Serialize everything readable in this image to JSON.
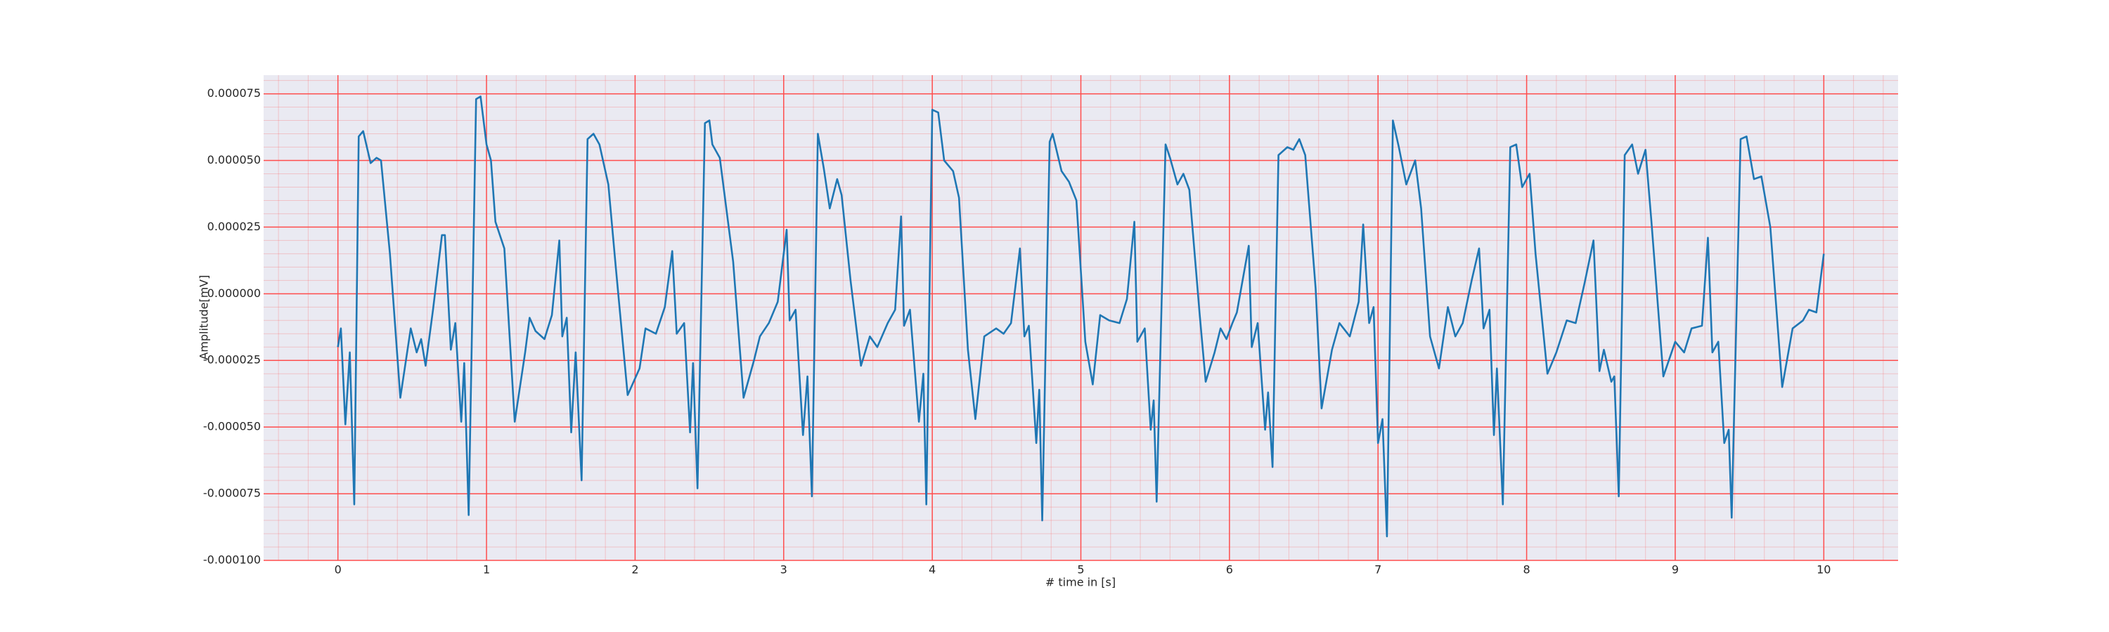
{
  "chart_data": {
    "type": "line",
    "xlabel": "# time in [s]",
    "ylabel": "Amplitude[mV]",
    "x": [
      0,
      0.02,
      0.05,
      0.08,
      0.11,
      0.14,
      0.17,
      0.22,
      0.26,
      0.29,
      0.35,
      0.42,
      0.49,
      0.53,
      0.56,
      0.59,
      0.64,
      0.7,
      0.72,
      0.76,
      0.79,
      0.83,
      0.85,
      0.88,
      0.93,
      0.96,
      1.0,
      1.03,
      1.06,
      1.12,
      1.19,
      1.26,
      1.29,
      1.33,
      1.39,
      1.44,
      1.49,
      1.51,
      1.54,
      1.57,
      1.6,
      1.64,
      1.68,
      1.72,
      1.76,
      1.82,
      1.87,
      1.95,
      2.03,
      2.07,
      2.14,
      2.2,
      2.25,
      2.28,
      2.33,
      2.37,
      2.39,
      2.42,
      2.47,
      2.5,
      2.52,
      2.57,
      2.66,
      2.73,
      2.8,
      2.84,
      2.9,
      2.96,
      3.02,
      3.04,
      3.08,
      3.13,
      3.16,
      3.19,
      3.23,
      3.27,
      3.31,
      3.36,
      3.39,
      3.45,
      3.52,
      3.58,
      3.63,
      3.7,
      3.75,
      3.79,
      3.81,
      3.85,
      3.91,
      3.94,
      3.96,
      4.0,
      4.04,
      4.08,
      4.14,
      4.18,
      4.24,
      4.29,
      4.35,
      4.43,
      4.48,
      4.53,
      4.59,
      4.62,
      4.65,
      4.7,
      4.72,
      4.74,
      4.79,
      4.81,
      4.87,
      4.92,
      4.97,
      5.03,
      5.08,
      5.13,
      5.19,
      5.26,
      5.31,
      5.36,
      5.38,
      5.43,
      5.47,
      5.49,
      5.51,
      5.57,
      5.6,
      5.65,
      5.69,
      5.73,
      5.8,
      5.84,
      5.9,
      5.94,
      5.98,
      6.02,
      6.05,
      6.13,
      6.15,
      6.19,
      6.24,
      6.26,
      6.29,
      6.33,
      6.39,
      6.43,
      6.47,
      6.51,
      6.58,
      6.62,
      6.69,
      6.74,
      6.81,
      6.87,
      6.9,
      6.94,
      6.97,
      7.0,
      7.03,
      7.06,
      7.1,
      7.14,
      7.19,
      7.25,
      7.29,
      7.35,
      7.41,
      7.47,
      7.52,
      7.57,
      7.63,
      7.68,
      7.71,
      7.75,
      7.78,
      7.8,
      7.84,
      7.89,
      7.93,
      7.97,
      8.02,
      8.06,
      8.14,
      8.2,
      8.27,
      8.33,
      8.39,
      8.45,
      8.49,
      8.52,
      8.57,
      8.59,
      8.62,
      8.66,
      8.71,
      8.75,
      8.8,
      8.84,
      8.92,
      9.0,
      9.06,
      9.11,
      9.18,
      9.22,
      9.25,
      9.29,
      9.33,
      9.36,
      9.38,
      9.44,
      9.48,
      9.53,
      9.58,
      9.64,
      9.72,
      9.79,
      9.86,
      9.9,
      9.95,
      10.0
    ],
    "series": [
      {
        "color": "#1f77b4",
        "values": [
          -2e-05,
          -1.3e-05,
          -4.9e-05,
          -2.2e-05,
          -7.9e-05,
          5.9e-05,
          6.1e-05,
          4.9e-05,
          5.1e-05,
          5e-05,
          1.5e-05,
          -3.9e-05,
          -1.3e-05,
          -2.2e-05,
          -1.7e-05,
          -2.7e-05,
          -6e-06,
          2.2e-05,
          2.2e-05,
          -2.1e-05,
          -1.1e-05,
          -4.8e-05,
          -2.6e-05,
          -8.3e-05,
          7.3e-05,
          7.4e-05,
          5.6e-05,
          5e-05,
          2.7e-05,
          1.7e-05,
          -4.8e-05,
          -2.2e-05,
          -9e-06,
          -1.4e-05,
          -1.7e-05,
          -8e-06,
          2e-05,
          -1.6e-05,
          -9e-06,
          -5.2e-05,
          -2.2e-05,
          -7e-05,
          5.8e-05,
          6e-05,
          5.6e-05,
          4.1e-05,
          1e-05,
          -3.8e-05,
          -2.8e-05,
          -1.3e-05,
          -1.5e-05,
          -5e-06,
          1.6e-05,
          -1.5e-05,
          -1.1e-05,
          -5.2e-05,
          -2.6e-05,
          -7.3e-05,
          6.4e-05,
          6.5e-05,
          5.6e-05,
          5.1e-05,
          1.2e-05,
          -3.9e-05,
          -2.5e-05,
          -1.6e-05,
          -1.1e-05,
          -3e-06,
          2.4e-05,
          -1e-05,
          -6e-06,
          -5.3e-05,
          -3.1e-05,
          -7.6e-05,
          6e-05,
          4.7e-05,
          3.2e-05,
          4.3e-05,
          3.7e-05,
          5e-06,
          -2.7e-05,
          -1.6e-05,
          -2e-05,
          -1.1e-05,
          -6e-06,
          2.9e-05,
          -1.2e-05,
          -6e-06,
          -4.8e-05,
          -3e-05,
          -7.9e-05,
          6.9e-05,
          6.8e-05,
          5e-05,
          4.6e-05,
          3.6e-05,
          -2.1e-05,
          -4.7e-05,
          -1.6e-05,
          -1.3e-05,
          -1.5e-05,
          -1.1e-05,
          1.7e-05,
          -1.6e-05,
          -1.2e-05,
          -5.6e-05,
          -3.6e-05,
          -8.5e-05,
          5.7e-05,
          6e-05,
          4.6e-05,
          4.2e-05,
          3.5e-05,
          -1.8e-05,
          -3.4e-05,
          -8e-06,
          -1e-05,
          -1.1e-05,
          -2e-06,
          2.7e-05,
          -1.8e-05,
          -1.3e-05,
          -5.1e-05,
          -4e-05,
          -7.8e-05,
          5.6e-05,
          5.1e-05,
          4.1e-05,
          4.5e-05,
          3.9e-05,
          -8e-06,
          -3.3e-05,
          -2.2e-05,
          -1.3e-05,
          -1.7e-05,
          -1.1e-05,
          -7e-06,
          1.8e-05,
          -2e-05,
          -1.1e-05,
          -5.1e-05,
          -3.7e-05,
          -6.5e-05,
          5.2e-05,
          5.5e-05,
          5.4e-05,
          5.8e-05,
          5.2e-05,
          2e-06,
          -4.3e-05,
          -2.1e-05,
          -1.1e-05,
          -1.6e-05,
          -3e-06,
          2.6e-05,
          -1.1e-05,
          -5e-06,
          -5.6e-05,
          -4.7e-05,
          -9.1e-05,
          6.5e-05,
          5.5e-05,
          4.1e-05,
          5e-05,
          3.2e-05,
          -1.6e-05,
          -2.8e-05,
          -5e-06,
          -1.6e-05,
          -1.1e-05,
          5e-06,
          1.7e-05,
          -1.3e-05,
          -6e-06,
          -5.3e-05,
          -2.8e-05,
          -7.9e-05,
          5.5e-05,
          5.6e-05,
          4e-05,
          4.5e-05,
          1.5e-05,
          -3e-05,
          -2.2e-05,
          -1e-05,
          -1.1e-05,
          4e-06,
          2e-05,
          -2.9e-05,
          -2.1e-05,
          -3.3e-05,
          -3.1e-05,
          -7.6e-05,
          5.2e-05,
          5.6e-05,
          4.5e-05,
          5.4e-05,
          2.7e-05,
          -3.1e-05,
          -1.8e-05,
          -2.2e-05,
          -1.3e-05,
          -1.2e-05,
          2.1e-05,
          -2.2e-05,
          -1.8e-05,
          -5.6e-05,
          -5.1e-05,
          -8.4e-05,
          5.8e-05,
          5.9e-05,
          4.3e-05,
          4.4e-05,
          2.5e-05,
          -3.5e-05,
          -1.3e-05,
          -1e-05,
          -6e-06,
          -7e-06,
          1.5e-05
        ]
      }
    ],
    "xlim": [
      -0.5,
      10.5
    ],
    "xticks": [
      0,
      1,
      2,
      3,
      4,
      5,
      6,
      7,
      8,
      9,
      10
    ],
    "ylim": [
      -0.0001,
      8.2e-05
    ],
    "yticks": [
      {
        "value": -0.0001,
        "label": "-0.000100"
      },
      {
        "value": -7.5e-05,
        "label": "-0.000075"
      },
      {
        "value": -5e-05,
        "label": "-0.000050"
      },
      {
        "value": -2.5e-05,
        "label": "-0.000025"
      },
      {
        "value": 0,
        "label": "0.000000"
      },
      {
        "value": 2.5e-05,
        "label": "0.000025"
      },
      {
        "value": 5e-05,
        "label": "0.000050"
      },
      {
        "value": 7.5e-05,
        "label": "0.000075"
      }
    ],
    "grid": true,
    "grid_color": "#ff4d4d",
    "minor_grid": true,
    "background": "#eaeaf2"
  }
}
